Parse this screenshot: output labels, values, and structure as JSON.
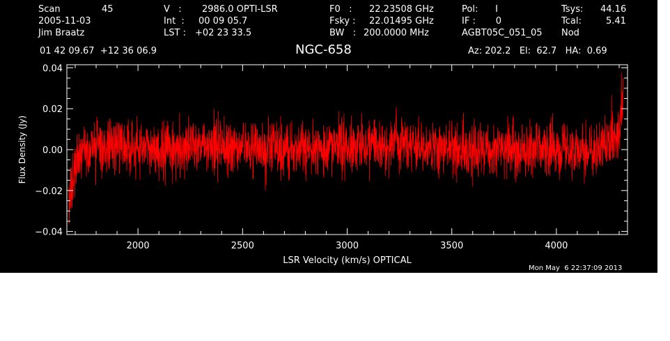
{
  "header": {
    "col1": [
      "Scan",
      "2005-11-03",
      "Jim Braatz"
    ],
    "scan_number": "45",
    "col2_labels": [
      "V   :",
      "Int  :",
      "LST :"
    ],
    "col2_values": [
      "2986.0 OPTI-LSR",
      "00 09 05.7",
      "+02 23 33.5"
    ],
    "col3_labels": [
      "F0   :",
      "Fsky :",
      "BW   :"
    ],
    "col3_values": [
      "22.23508 GHz",
      "22.01495 GHz",
      "200.0000 MHz"
    ],
    "col4": [
      "Pol:      I",
      "IF :       0",
      "AGBT05C_051_05"
    ],
    "col5_labels": [
      "Tsys:",
      "Tcal:",
      "Nod"
    ],
    "col5_values": [
      "44.16",
      "5.41",
      ""
    ],
    "coords": "01 42 09.67  +12 36 06.9",
    "source": "NGC-658",
    "az_el_ha": "Az: 202.2   El:  62.7   HA:  0.69"
  },
  "footer": {
    "timestamp": "Mon May  6 22:37:09 2013"
  },
  "chart_data": {
    "type": "line",
    "title": "NGC-658",
    "xlabel": "LSR Velocity (km/s) OPTICAL",
    "ylabel": "Flux Density (Jy)",
    "xlim": [
      1660,
      4340
    ],
    "ylim": [
      -0.0415,
      0.0415
    ],
    "x_ticks": [
      2000,
      2500,
      3000,
      3500,
      4000
    ],
    "y_ticks": [
      -0.04,
      -0.02,
      0.0,
      0.02,
      0.04
    ],
    "x_tick_labels": [
      "2000",
      "2500",
      "3000",
      "3500",
      "4000"
    ],
    "y_tick_labels": [
      "−0.04",
      "−0.02",
      "0.00",
      "0.02",
      "0.04"
    ],
    "grid": false,
    "background": "#000000",
    "axis_color": "#ffffff",
    "series": [
      {
        "color": "#ff0000",
        "x": [
          1670,
          1680,
          1690,
          1700,
          1720,
          1740,
          1760,
          1780,
          1800,
          1850,
          1900,
          1950,
          2000,
          2100,
          2200,
          2300,
          2400,
          2500,
          2600,
          2700,
          2800,
          2900,
          3000,
          3100,
          3150,
          3200,
          3300,
          3400,
          3500,
          3600,
          3700,
          3800,
          3900,
          4000,
          4100,
          4150,
          4200,
          4230,
          4260,
          4280,
          4300,
          4310,
          4320
        ],
        "y": [
          -0.024,
          -0.022,
          -0.015,
          -0.006,
          -0.001,
          0.0,
          0.001,
          0.002,
          0.001,
          0.001,
          0.002,
          0.002,
          0.001,
          0.0,
          0.0,
          0.001,
          0.001,
          0.001,
          0.0,
          0.0,
          0.001,
          0.001,
          0.001,
          0.002,
          0.003,
          0.003,
          0.002,
          0.001,
          0.0,
          0.0,
          0.0,
          0.0,
          0.0,
          0.0,
          0.0,
          0.0,
          0.001,
          0.002,
          0.004,
          0.007,
          0.012,
          0.018,
          0.024
        ],
        "noise_sigma": 0.0065
      }
    ]
  }
}
